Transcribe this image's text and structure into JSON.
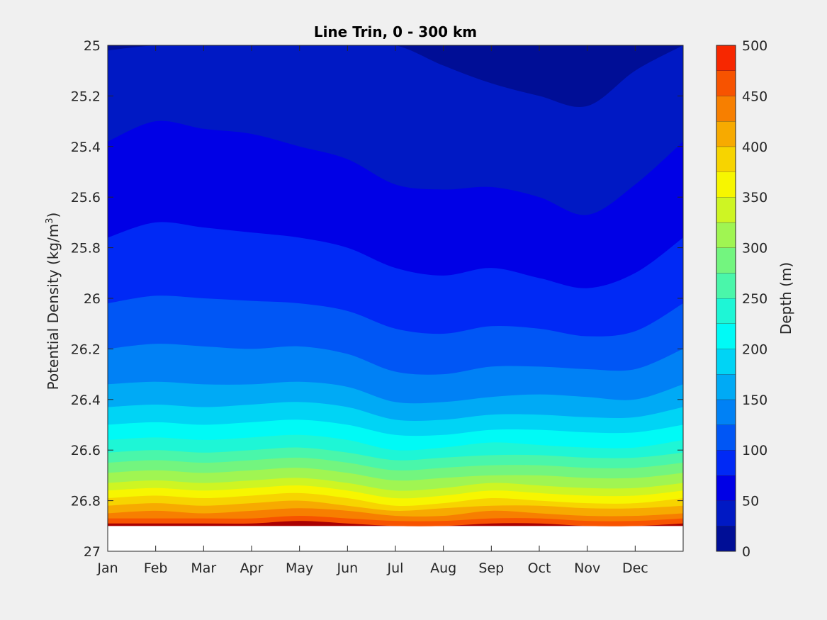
{
  "chart_data": {
    "type": "contourf",
    "title": "Line Trin, 0 - 300 km",
    "xlabel": "",
    "ylabel": "Potential Density (kg/m",
    "ylabel_sup": "3",
    "ylabel_close": ")",
    "x_ticks": [
      "Jan",
      "Feb",
      "Mar",
      "Apr",
      "May",
      "Jun",
      "Jul",
      "Aug",
      "Sep",
      "Oct",
      "Nov",
      "Dec"
    ],
    "y_ticks": [
      "25",
      "25.2",
      "25.4",
      "25.6",
      "25.8",
      "26",
      "26.2",
      "26.4",
      "26.6",
      "26.8",
      "27"
    ],
    "ylim": [
      25,
      27
    ],
    "y_direction": "reversed",
    "data_bottom_density": 26.9,
    "grid": false,
    "colorbar": {
      "label": "Depth (m)",
      "range": [
        0,
        500
      ],
      "tick_labels": [
        "0",
        "50",
        "100",
        "150",
        "200",
        "250",
        "300",
        "350",
        "400",
        "450",
        "500"
      ],
      "levels": [
        0,
        25,
        50,
        75,
        100,
        125,
        150,
        175,
        200,
        225,
        250,
        275,
        300,
        325,
        350,
        375,
        400,
        425,
        450,
        475,
        500
      ],
      "colors": [
        "#000e96",
        "#0019c4",
        "#0000e6",
        "#0029f5",
        "#0056f5",
        "#0081f5",
        "#00aaf5",
        "#00d4f5",
        "#00faf6",
        "#1ef6d6",
        "#4af6aa",
        "#73f57f",
        "#a0f552",
        "#cef523",
        "#f7f600",
        "#f7d400",
        "#f7aa00",
        "#f77f00",
        "#f75300",
        "#f72700",
        "#aa0000"
      ]
    },
    "contours": [
      {
        "depth": 25,
        "density": [
          25.02,
          25.0,
          25.0,
          25.0,
          25.0,
          25.0,
          25.0,
          25.08,
          25.15,
          25.2,
          25.24,
          25.1,
          25.0
        ]
      },
      {
        "depth": 50,
        "density": [
          25.38,
          25.3,
          25.33,
          25.35,
          25.4,
          25.45,
          25.55,
          25.57,
          25.56,
          25.6,
          25.67,
          25.55,
          25.38
        ]
      },
      {
        "depth": 75,
        "density": [
          25.76,
          25.7,
          25.72,
          25.74,
          25.76,
          25.8,
          25.88,
          25.91,
          25.88,
          25.92,
          25.96,
          25.9,
          25.76
        ]
      },
      {
        "depth": 100,
        "density": [
          26.02,
          25.99,
          26.0,
          26.01,
          26.02,
          26.05,
          26.12,
          26.14,
          26.11,
          26.12,
          26.15,
          26.13,
          26.02
        ]
      },
      {
        "depth": 125,
        "density": [
          26.2,
          26.18,
          26.19,
          26.2,
          26.19,
          26.22,
          26.29,
          26.3,
          26.27,
          26.27,
          26.28,
          26.28,
          26.2
        ]
      },
      {
        "depth": 150,
        "density": [
          26.34,
          26.33,
          26.34,
          26.34,
          26.33,
          26.35,
          26.41,
          26.41,
          26.39,
          26.38,
          26.39,
          26.4,
          26.34
        ]
      },
      {
        "depth": 175,
        "density": [
          26.43,
          26.42,
          26.43,
          26.42,
          26.41,
          26.43,
          26.48,
          26.48,
          26.46,
          26.46,
          26.47,
          26.47,
          26.43
        ]
      },
      {
        "depth": 200,
        "density": [
          26.5,
          26.49,
          26.5,
          26.49,
          26.48,
          26.5,
          26.54,
          26.54,
          26.52,
          26.52,
          26.53,
          26.53,
          26.5
        ]
      },
      {
        "depth": 225,
        "density": [
          26.56,
          26.55,
          26.56,
          26.55,
          26.54,
          26.56,
          26.6,
          26.59,
          26.57,
          26.58,
          26.59,
          26.59,
          26.56
        ]
      },
      {
        "depth": 250,
        "density": [
          26.61,
          26.6,
          26.61,
          26.6,
          26.59,
          26.61,
          26.64,
          26.63,
          26.62,
          26.62,
          26.63,
          26.63,
          26.61
        ]
      },
      {
        "depth": 275,
        "density": [
          26.65,
          26.64,
          26.65,
          26.64,
          26.63,
          26.65,
          26.68,
          26.67,
          26.66,
          26.66,
          26.67,
          26.67,
          26.65
        ]
      },
      {
        "depth": 300,
        "density": [
          26.69,
          26.68,
          26.69,
          26.68,
          26.67,
          26.69,
          26.72,
          26.71,
          26.7,
          26.7,
          26.71,
          26.71,
          26.69
        ]
      },
      {
        "depth": 325,
        "density": [
          26.73,
          26.72,
          26.73,
          26.72,
          26.71,
          26.73,
          26.76,
          26.75,
          26.73,
          26.74,
          26.75,
          26.75,
          26.73
        ]
      },
      {
        "depth": 350,
        "density": [
          26.76,
          26.75,
          26.76,
          26.75,
          26.74,
          26.76,
          26.79,
          26.78,
          26.76,
          26.77,
          26.78,
          26.78,
          26.76
        ]
      },
      {
        "depth": 375,
        "density": [
          26.79,
          26.78,
          26.79,
          26.78,
          26.77,
          26.79,
          26.82,
          26.81,
          26.79,
          26.8,
          26.81,
          26.81,
          26.79
        ]
      },
      {
        "depth": 400,
        "density": [
          26.82,
          26.81,
          26.82,
          26.81,
          26.8,
          26.82,
          26.84,
          26.83,
          26.82,
          26.82,
          26.83,
          26.83,
          26.82
        ]
      },
      {
        "depth": 425,
        "density": [
          26.85,
          26.84,
          26.85,
          26.84,
          26.83,
          26.84,
          26.86,
          26.86,
          26.84,
          26.85,
          26.86,
          26.86,
          26.85
        ]
      },
      {
        "depth": 450,
        "density": [
          26.87,
          26.87,
          26.87,
          26.87,
          26.86,
          26.87,
          26.88,
          26.88,
          26.87,
          26.87,
          26.88,
          26.88,
          26.87
        ]
      },
      {
        "depth": 475,
        "density": [
          26.89,
          26.89,
          26.89,
          26.89,
          26.88,
          26.89,
          26.9,
          26.9,
          26.89,
          26.89,
          26.9,
          26.9,
          26.89
        ]
      }
    ]
  }
}
